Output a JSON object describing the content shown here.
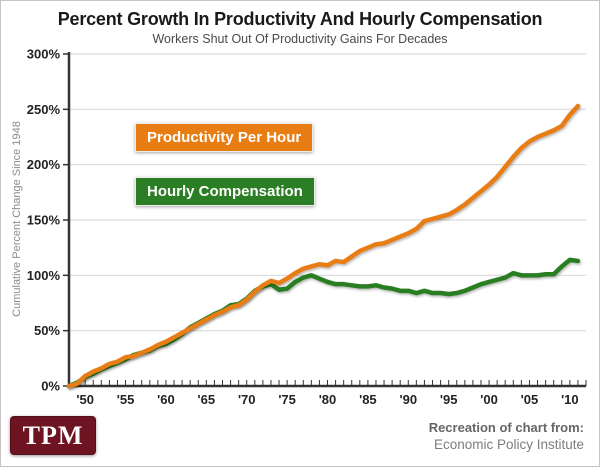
{
  "header": {
    "title": "Percent Growth In Productivity And Hourly Compensation",
    "subtitle": "Workers Shut Out Of Productivity Gains For Decades"
  },
  "chart_data": {
    "type": "line",
    "title": "Percent Growth In Productivity And Hourly Compensation",
    "subtitle": "Workers Shut Out Of Productivity Gains For Decades",
    "ylabel": "Cumulative Percent Change Since 1948",
    "ylim": [
      0,
      300
    ],
    "grid": "horizontal",
    "legend_position": "inside-upper-left-boxes",
    "x": [
      1948,
      1949,
      1950,
      1951,
      1952,
      1953,
      1954,
      1955,
      1956,
      1957,
      1958,
      1959,
      1960,
      1961,
      1962,
      1963,
      1964,
      1965,
      1966,
      1967,
      1968,
      1969,
      1970,
      1971,
      1972,
      1973,
      1974,
      1975,
      1976,
      1977,
      1978,
      1979,
      1980,
      1981,
      1982,
      1983,
      1984,
      1985,
      1986,
      1987,
      1988,
      1989,
      1990,
      1991,
      1992,
      1993,
      1994,
      1995,
      1996,
      1997,
      1998,
      1999,
      2000,
      2001,
      2002,
      2003,
      2004,
      2005,
      2006,
      2007,
      2008,
      2009,
      2010,
      2011
    ],
    "series": [
      {
        "name": "Productivity Per Hour",
        "color": "#E87D13",
        "values": [
          0,
          2,
          9,
          13,
          16,
          20,
          22,
          26,
          27,
          30,
          33,
          37,
          40,
          44,
          48,
          52,
          56,
          60,
          64,
          67,
          71,
          73,
          78,
          85,
          91,
          95,
          93,
          97,
          102,
          106,
          108,
          110,
          109,
          113,
          112,
          117,
          122,
          125,
          128,
          129,
          132,
          135,
          138,
          142,
          149,
          151,
          153,
          155,
          159,
          164,
          170,
          176,
          182,
          189,
          198,
          207,
          215,
          221,
          225,
          228,
          231,
          235,
          245,
          253
        ]
      },
      {
        "name": "Hourly Compensation",
        "color": "#2B7E23",
        "values": [
          0,
          3,
          8,
          11,
          15,
          18,
          21,
          24,
          28,
          30,
          32,
          36,
          38,
          42,
          47,
          53,
          57,
          61,
          65,
          68,
          73,
          74,
          79,
          86,
          90,
          92,
          87,
          88,
          94,
          98,
          100,
          97,
          94,
          92,
          92,
          91,
          90,
          90,
          91,
          89,
          88,
          86,
          86,
          84,
          86,
          84,
          84,
          83,
          84,
          86,
          89,
          92,
          94,
          96,
          98,
          102,
          100,
          100,
          100,
          101,
          101,
          108,
          114,
          113
        ]
      }
    ],
    "yticks": {
      "values": [
        0,
        50,
        100,
        150,
        200,
        250,
        300
      ],
      "labels": [
        "0%",
        "50%",
        "100%",
        "150%",
        "200%",
        "250%",
        "300%"
      ]
    },
    "xticks": {
      "values": [
        1950,
        1955,
        1960,
        1965,
        1970,
        1975,
        1980,
        1985,
        1990,
        1995,
        2000,
        2005,
        2010
      ],
      "labels": [
        "'50",
        "'55",
        "'60",
        "'65",
        "'70",
        "'75",
        "'80",
        "'85",
        "'90",
        "'95",
        "'00",
        "'05",
        "'10"
      ]
    }
  },
  "footer": {
    "logo_text": "TPM",
    "credit_bold": "Recreation of chart from:",
    "credit_regular": "Economic Policy Institute"
  },
  "colors": {
    "productivity": "#E87D13",
    "compensation": "#2B7E23",
    "logo_bg": "#6D1321",
    "grid": "#D9D9D9",
    "axis": "#333333"
  }
}
